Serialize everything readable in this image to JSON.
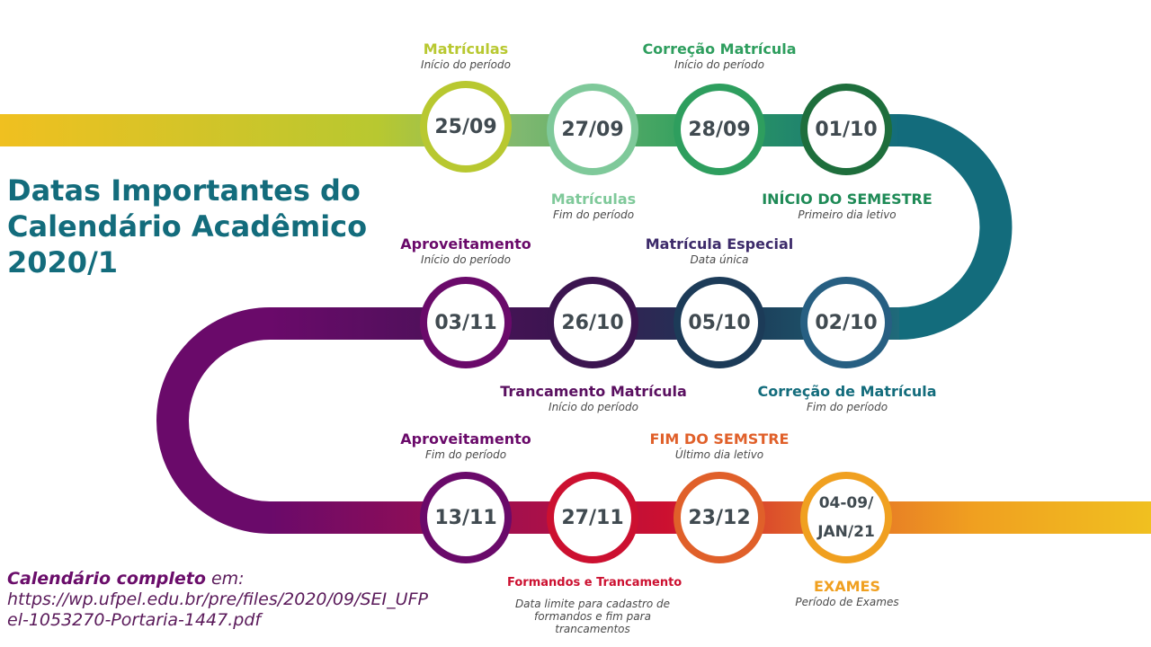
{
  "title": {
    "line1": "Datas Importantes do",
    "line2": "Calendário Acadêmico",
    "line3": "2020/1"
  },
  "colors": {
    "yellow": "#f0c020",
    "olive": "#b8c830",
    "light_green": "#7fc99a",
    "green": "#2e9e5e",
    "dark_green": "#1e6e3c",
    "teal": "#136c7c",
    "steel": "#275f82",
    "navy": "#1c3b58",
    "dark_purple": "#3c1550",
    "purple": "#6a0a6a",
    "red": "#cc1030",
    "orange_red": "#e0602a",
    "orange": "#f0a020"
  },
  "nodes": {
    "n1": {
      "date": "25/09",
      "title": "Matrículas",
      "sub": "Início  do período"
    },
    "n2": {
      "date": "27/09",
      "title": "Matrículas",
      "sub": "Fim do período"
    },
    "n3": {
      "date": "28/09",
      "title": "Correção Matrícula",
      "sub": "Início  do período"
    },
    "n4": {
      "date": "01/10",
      "title": "INÍCIO DO SEMESTRE",
      "sub": "Primeiro  dia letivo"
    },
    "n5": {
      "date": "02/10",
      "title": "Correção de Matrícula",
      "sub": "Fim do período"
    },
    "n6": {
      "date": "05/10",
      "title": "Matrícula Especial",
      "sub": "Data única"
    },
    "n7": {
      "date": "26/10",
      "title": "Trancamento  Matrícula",
      "sub": "Início  do período"
    },
    "n8": {
      "date": "03/11",
      "title": "Aproveitamento",
      "sub": "Início  do período"
    },
    "n9": {
      "date": "13/11",
      "title": "Aproveitamento",
      "sub": "Fim do período"
    },
    "n10": {
      "date": "27/11",
      "title": "Formandos e Trancamento",
      "sub": "Data limite para cadastro de formandos e fim para trancamentos"
    },
    "n11": {
      "date": "23/12",
      "title": "FIM DO SEMSTRE",
      "sub": "Último  dia letivo"
    },
    "n12": {
      "date_line1": "04-09/",
      "date_line2": "JAN/21",
      "title": "EXAMES",
      "sub": "Período de Exames"
    }
  },
  "footer": {
    "bold": "Calendário  completo",
    "rest": " em:",
    "url_line1": "https://wp.ufpel.edu.br/pre/files/2020/09/SEI_UFP",
    "url_line2": "el-1053270-Portaria-1447.pdf"
  }
}
